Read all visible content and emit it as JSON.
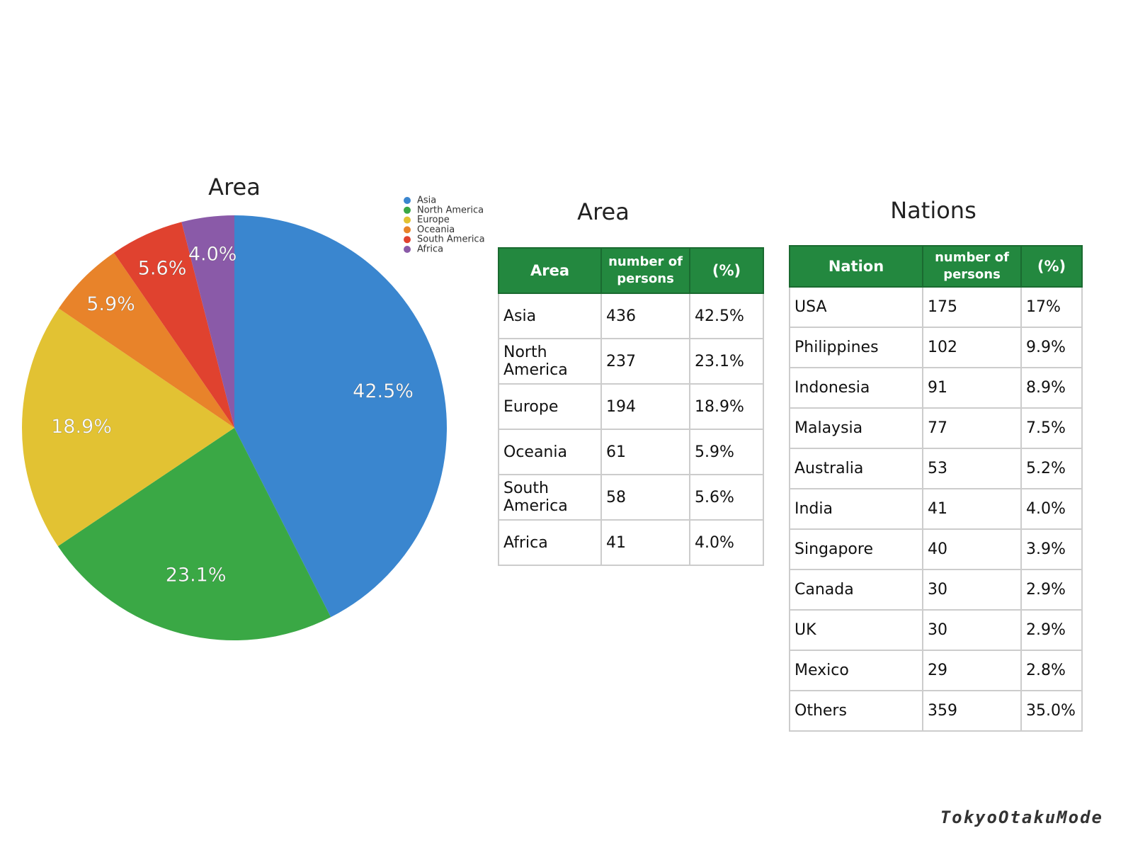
{
  "chart_data": {
    "type": "pie",
    "title": "Area",
    "categories": [
      "Asia",
      "North America",
      "Europe",
      "Oceania",
      "South America",
      "Africa"
    ],
    "values": [
      42.5,
      23.1,
      18.9,
      5.9,
      5.6,
      4.0
    ],
    "value_labels": [
      "42.5%",
      "23.1%",
      "18.9%",
      "5.9%",
      "5.6%",
      "4.0%"
    ],
    "colors": [
      "#3a86cf",
      "#3aa845",
      "#e2c233",
      "#e8832a",
      "#e0422f",
      "#8a5aa8"
    ],
    "legend": "top-right"
  },
  "area_table": {
    "title": "Area",
    "header": [
      "Area",
      "number of persons",
      "(%)"
    ],
    "rows": [
      [
        "Asia",
        "436",
        "42.5%"
      ],
      [
        "North America",
        "237",
        "23.1%"
      ],
      [
        "Europe",
        "194",
        "18.9%"
      ],
      [
        "Oceania",
        "61",
        "5.9%"
      ],
      [
        "South America",
        "58",
        "5.6%"
      ],
      [
        "Africa",
        "41",
        "4.0%"
      ]
    ]
  },
  "nations_table": {
    "title": "Nations",
    "header": [
      "Nation",
      "number of persons",
      "(%)"
    ],
    "rows": [
      [
        "USA",
        "175",
        "17%"
      ],
      [
        "Philippines",
        "102",
        "9.9%"
      ],
      [
        "Indonesia",
        "91",
        "8.9%"
      ],
      [
        "Malaysia",
        "77",
        "7.5%"
      ],
      [
        "Australia",
        "53",
        "5.2%"
      ],
      [
        "India",
        "41",
        "4.0%"
      ],
      [
        "Singapore",
        "40",
        "3.9%"
      ],
      [
        "Canada",
        "30",
        "2.9%"
      ],
      [
        "UK",
        "30",
        "2.9%"
      ],
      [
        "Mexico",
        "29",
        "2.8%"
      ],
      [
        "Others",
        "359",
        "35.0%"
      ]
    ]
  },
  "brand": "TokyoOtakuMode"
}
